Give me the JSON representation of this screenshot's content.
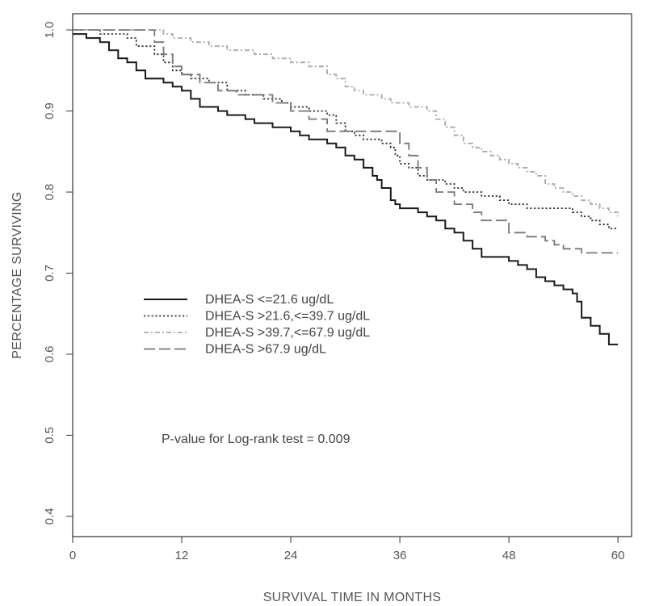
{
  "chart_data": {
    "type": "line",
    "title": "",
    "xlabel": "SURVIVAL TIME IN MONTHS",
    "ylabel": "PERCENTAGE SURVIVING",
    "xlim": [
      0,
      61.5
    ],
    "ylim": [
      0.375,
      1.02
    ],
    "x_ticks": [
      0,
      12,
      24,
      36,
      48,
      60
    ],
    "y_ticks": [
      0.4,
      0.5,
      0.6,
      0.7,
      0.8,
      0.9,
      1.0
    ],
    "y_tick_labels": [
      "0.4",
      "0.5",
      "0.6",
      "0.7",
      "0.8",
      "0.9",
      "1.0"
    ],
    "grid": false,
    "legend_position": "center-left",
    "annotation": "P-value for Log-rank test = 0.009",
    "series": [
      {
        "name": "DHEA-S <=21.6 ug/dL",
        "style": "solid",
        "color": "#1a1a1a",
        "x": [
          0,
          1.5,
          3,
          4,
          5,
          6,
          7,
          8,
          10,
          11,
          12,
          13,
          14,
          16,
          17,
          19,
          20,
          22,
          24,
          25,
          26,
          28,
          29,
          30,
          31,
          32,
          33,
          33.5,
          34,
          35,
          35.5,
          36,
          37,
          38,
          39,
          40,
          41,
          42,
          43,
          44,
          45,
          46,
          47,
          48,
          49,
          50,
          51,
          52,
          53,
          54,
          55,
          55.5,
          56,
          57,
          58,
          59,
          60
        ],
        "y": [
          0.995,
          0.99,
          0.985,
          0.975,
          0.965,
          0.96,
          0.95,
          0.94,
          0.935,
          0.93,
          0.925,
          0.915,
          0.905,
          0.9,
          0.895,
          0.89,
          0.885,
          0.88,
          0.875,
          0.87,
          0.865,
          0.86,
          0.855,
          0.845,
          0.84,
          0.83,
          0.82,
          0.815,
          0.805,
          0.79,
          0.785,
          0.78,
          0.78,
          0.775,
          0.77,
          0.765,
          0.755,
          0.75,
          0.74,
          0.73,
          0.72,
          0.72,
          0.72,
          0.715,
          0.71,
          0.705,
          0.695,
          0.69,
          0.685,
          0.68,
          0.675,
          0.665,
          0.645,
          0.635,
          0.625,
          0.612,
          0.612
        ]
      },
      {
        "name": "DHEA-S >21.6,<=39.7 ug/dL",
        "style": "dotted",
        "color": "#333333",
        "x": [
          0,
          3,
          6,
          7,
          9,
          10,
          11,
          12,
          13,
          15,
          17,
          19,
          21,
          23,
          24,
          26,
          28,
          29,
          30,
          31,
          32,
          34,
          35,
          35.5,
          36,
          37,
          38,
          39,
          40,
          41,
          42,
          43,
          44,
          45,
          46,
          47,
          48,
          49,
          50,
          51,
          52,
          53,
          54,
          55,
          56,
          57,
          58,
          59,
          60
        ],
        "y": [
          1.0,
          0.995,
          0.99,
          0.98,
          0.97,
          0.96,
          0.95,
          0.945,
          0.94,
          0.935,
          0.925,
          0.92,
          0.915,
          0.91,
          0.905,
          0.9,
          0.895,
          0.885,
          0.875,
          0.87,
          0.865,
          0.86,
          0.855,
          0.845,
          0.835,
          0.83,
          0.82,
          0.815,
          0.815,
          0.81,
          0.805,
          0.8,
          0.8,
          0.795,
          0.795,
          0.79,
          0.785,
          0.785,
          0.78,
          0.78,
          0.78,
          0.78,
          0.78,
          0.775,
          0.77,
          0.765,
          0.76,
          0.755,
          0.755
        ]
      },
      {
        "name": "DHEA-S >39.7,<=67.9 ug/dL",
        "style": "dash-dot",
        "color": "#aaaaaa",
        "x": [
          0,
          8,
          10,
          11,
          13,
          15,
          17,
          20,
          22,
          24,
          26,
          28,
          29,
          30,
          31,
          32,
          34,
          35,
          37,
          39,
          40,
          41,
          42,
          43,
          44,
          45,
          46,
          47,
          48,
          49,
          50,
          51,
          52,
          53,
          54,
          55,
          56,
          57,
          58,
          59,
          60
        ],
        "y": [
          1.0,
          1.0,
          0.995,
          0.99,
          0.985,
          0.98,
          0.975,
          0.97,
          0.965,
          0.96,
          0.955,
          0.945,
          0.94,
          0.93,
          0.925,
          0.92,
          0.915,
          0.91,
          0.905,
          0.9,
          0.89,
          0.88,
          0.87,
          0.86,
          0.855,
          0.85,
          0.845,
          0.84,
          0.835,
          0.83,
          0.825,
          0.82,
          0.81,
          0.805,
          0.8,
          0.795,
          0.79,
          0.785,
          0.78,
          0.775,
          0.77
        ]
      },
      {
        "name": "DHEA-S >67.9 ug/dL",
        "style": "long-dash",
        "color": "#777777",
        "x": [
          0,
          8,
          9,
          10,
          11,
          12,
          14,
          16,
          18,
          22,
          24,
          26,
          28,
          33,
          36,
          37,
          38,
          39,
          40,
          42,
          44,
          45,
          48,
          50,
          52,
          53,
          54,
          56,
          58,
          60
        ],
        "y": [
          1.0,
          1.0,
          0.985,
          0.97,
          0.955,
          0.945,
          0.935,
          0.925,
          0.92,
          0.91,
          0.9,
          0.89,
          0.875,
          0.875,
          0.86,
          0.845,
          0.83,
          0.815,
          0.8,
          0.785,
          0.775,
          0.765,
          0.75,
          0.745,
          0.74,
          0.735,
          0.73,
          0.725,
          0.725,
          0.725
        ]
      }
    ]
  }
}
